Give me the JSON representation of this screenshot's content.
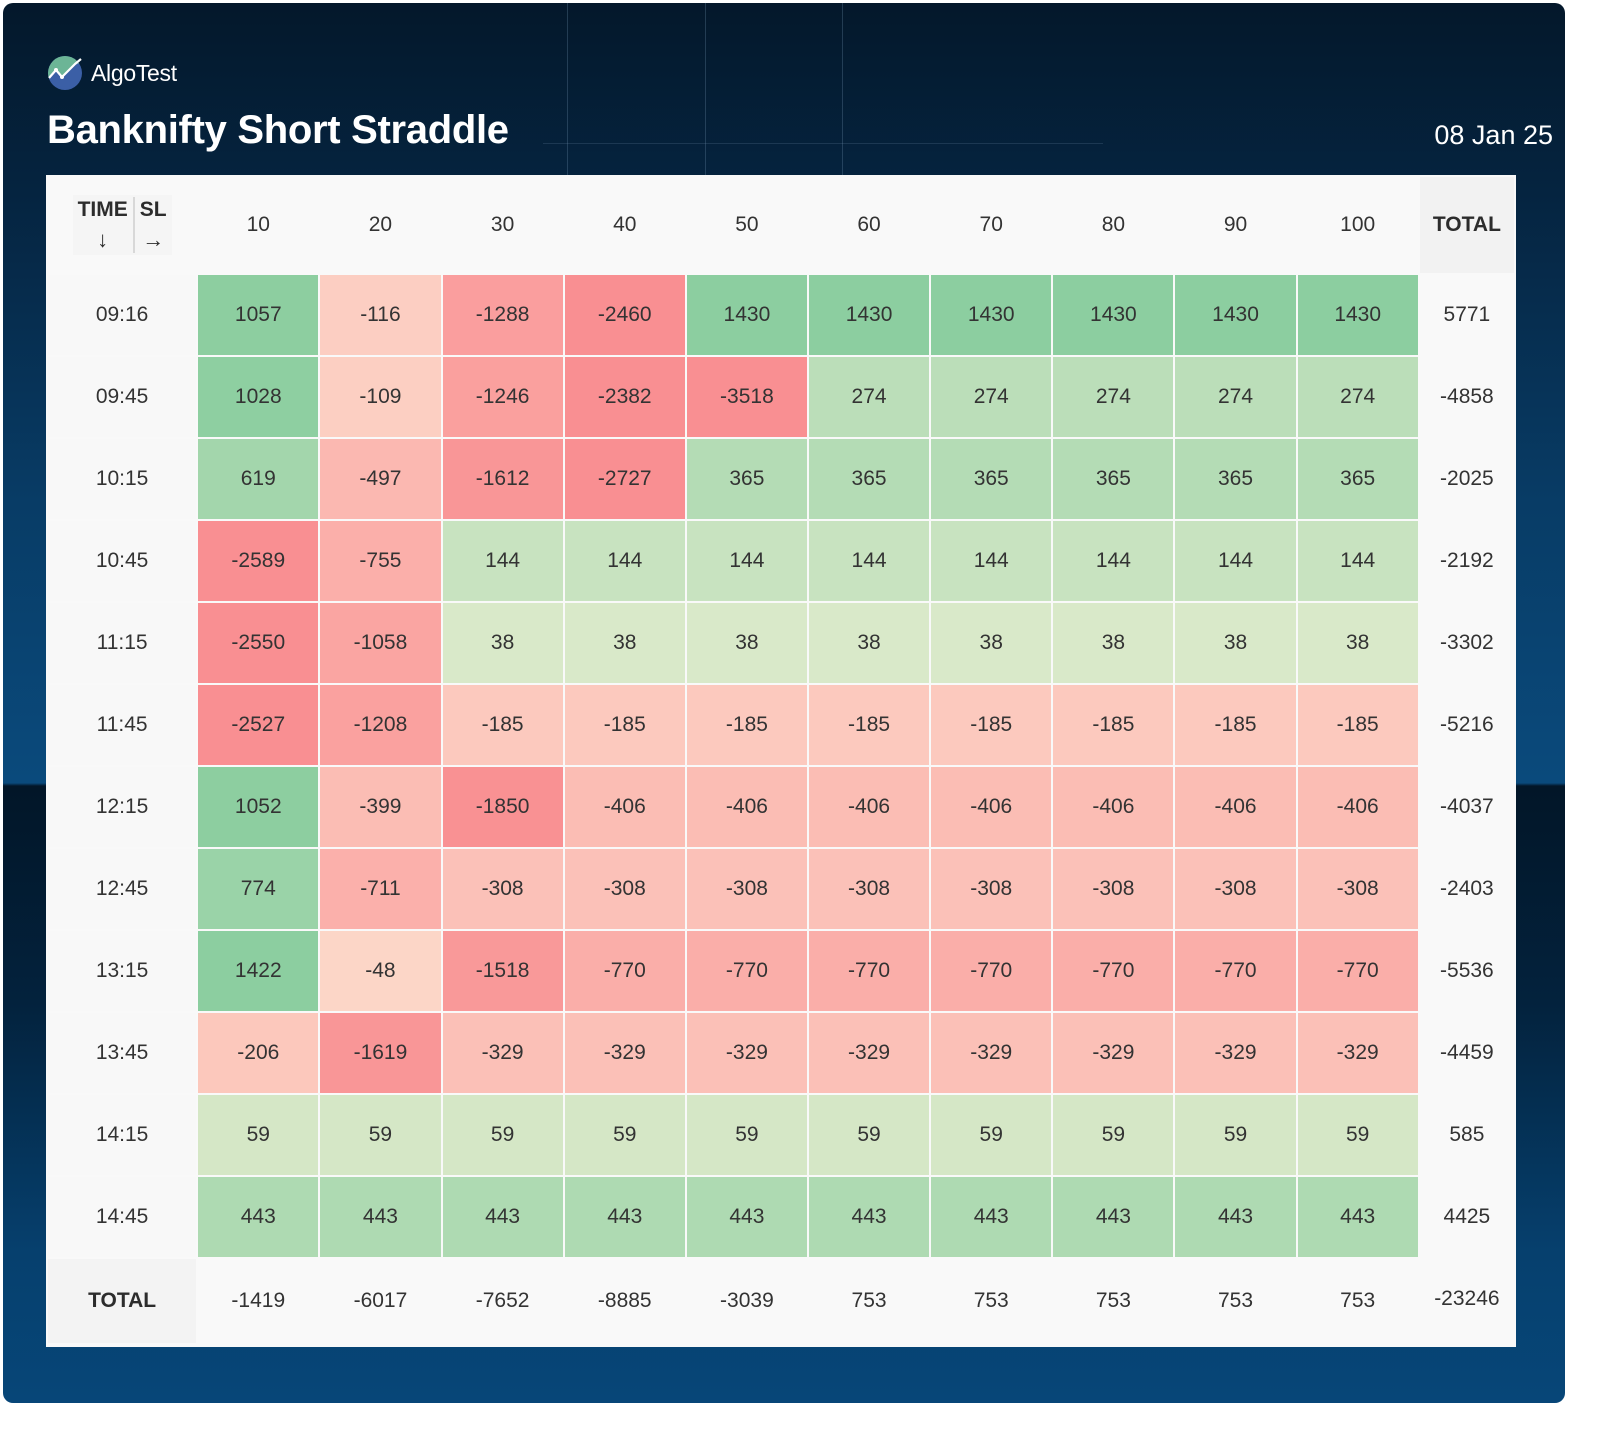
{
  "brand": {
    "name": "AlgoTest",
    "logo_icon": "chart-line-logo-icon"
  },
  "header": {
    "title": "Banknifty Short Straddle",
    "date": "08 Jan 25"
  },
  "table": {
    "corner": {
      "row_axis_label": "TIME",
      "row_axis_arrow": "↓",
      "col_axis_label": "SL",
      "col_axis_arrow": "→"
    },
    "total_label": "TOTAL"
  },
  "colors": {
    "positive_max": "#8ccea0",
    "positive_min": "#ebefd2",
    "negative_min": "#fde3d1",
    "negative_max": "#f98f92"
  },
  "chart_data": {
    "type": "heatmap",
    "title": "Banknifty Short Straddle",
    "xlabel": "SL",
    "ylabel": "TIME",
    "x": [
      "10",
      "20",
      "30",
      "40",
      "50",
      "60",
      "70",
      "80",
      "90",
      "100"
    ],
    "y": [
      "09:16",
      "09:45",
      "10:15",
      "10:45",
      "11:15",
      "11:45",
      "12:15",
      "12:45",
      "13:15",
      "13:45",
      "14:15",
      "14:45"
    ],
    "values": [
      [
        1057,
        -116,
        -1288,
        -2460,
        1430,
        1430,
        1430,
        1430,
        1430,
        1430
      ],
      [
        1028,
        -109,
        -1246,
        -2382,
        -3518,
        274,
        274,
        274,
        274,
        274
      ],
      [
        619,
        -497,
        -1612,
        -2727,
        365,
        365,
        365,
        365,
        365,
        365
      ],
      [
        -2589,
        -755,
        144,
        144,
        144,
        144,
        144,
        144,
        144,
        144
      ],
      [
        -2550,
        -1058,
        38,
        38,
        38,
        38,
        38,
        38,
        38,
        38
      ],
      [
        -2527,
        -1208,
        -185,
        -185,
        -185,
        -185,
        -185,
        -185,
        -185,
        -185
      ],
      [
        1052,
        -399,
        -1850,
        -406,
        -406,
        -406,
        -406,
        -406,
        -406,
        -406
      ],
      [
        774,
        -711,
        -308,
        -308,
        -308,
        -308,
        -308,
        -308,
        -308,
        -308
      ],
      [
        1422,
        -48,
        -1518,
        -770,
        -770,
        -770,
        -770,
        -770,
        -770,
        -770
      ],
      [
        -206,
        -1619,
        -329,
        -329,
        -329,
        -329,
        -329,
        -329,
        -329,
        -329
      ],
      [
        59,
        59,
        59,
        59,
        59,
        59,
        59,
        59,
        59,
        59
      ],
      [
        443,
        443,
        443,
        443,
        443,
        443,
        443,
        443,
        443,
        443
      ]
    ],
    "row_totals": [
      5771,
      -4858,
      -2025,
      -2192,
      -3302,
      -5216,
      -4037,
      -2403,
      -5536,
      -4459,
      585,
      4425
    ],
    "col_totals": [
      -1419,
      -6017,
      -7652,
      -8885,
      -3039,
      753,
      753,
      753,
      753,
      753
    ],
    "grand_total": -23246,
    "legend": "none"
  }
}
